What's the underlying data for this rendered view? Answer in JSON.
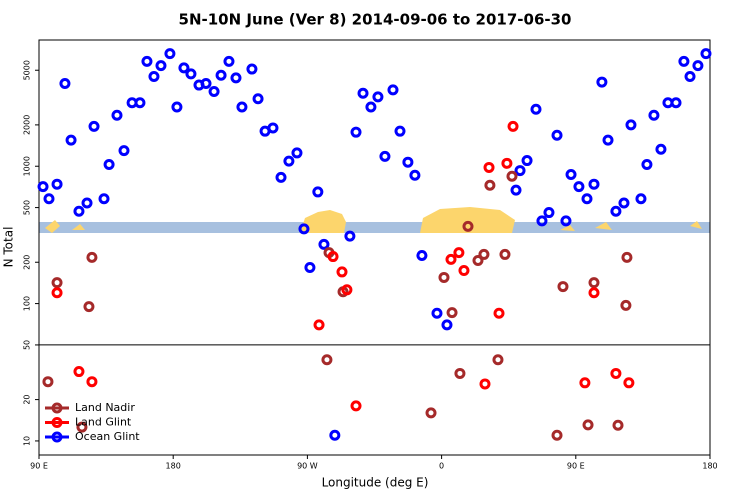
{
  "chart_data": {
    "type": "scatter",
    "title": "5N-10N June (Ver 8)   2014-09-06 to 2017-06-30",
    "x_label": "Longitude (deg E)",
    "y_label": "N Total",
    "log_y": true,
    "legend": "bottom-left",
    "reference_line": 50,
    "xlim": [
      90,
      540
    ],
    "xticks": [
      {
        "value": 90,
        "label": "90 E"
      },
      180,
      {
        "value": 270,
        "label": "90 W"
      },
      {
        "value": 360,
        "label": "0"
      },
      {
        "value": 450,
        "label": "90 E"
      },
      {
        "value": 540,
        "label": "180"
      }
    ],
    "ylim": [
      7.9,
      8300
    ],
    "yticks": [
      10,
      20,
      50,
      100,
      200,
      500,
      1000,
      2000,
      5000
    ],
    "series": [
      {
        "name": "Land Nadir",
        "color": "#a52a2a",
        "x": [
          96.0,
          102.1,
          118.8,
          125.5,
          123.5,
          283.1,
          284.5,
          293.9,
          352.9,
          361.6,
          367.0,
          372.3,
          377.7,
          384.4,
          388.4,
          392.4,
          397.8,
          402.5,
          407.2,
          437.4,
          441.4,
          458.2,
          462.2,
          478.3,
          484.3,
          483.6
        ],
        "values": [
          27,
          142,
          12.6,
          217,
          95,
          39,
          235,
          122,
          16,
          155,
          86,
          31,
          365,
          206,
          228,
          727,
          39,
          228,
          845,
          11,
          133,
          13.1,
          142,
          13,
          217,
          97
        ]
      },
      {
        "name": "Land Glint",
        "color": "#ff0000",
        "x": [
          102.1,
          116.8,
          125.5,
          277.8,
          287.2,
          293.2,
          296.5,
          302.6,
          366.3,
          371.6,
          375.0,
          391.8,
          398.5,
          389.1,
          403.8,
          407.9,
          456.1,
          462.2,
          476.9,
          485.6
        ],
        "values": [
          120,
          32,
          27,
          70,
          220,
          170,
          126,
          18,
          210,
          235,
          174,
          980,
          85,
          26,
          1050,
          1950,
          26.5,
          120,
          31,
          26.5
        ]
      },
      {
        "name": "Ocean Glint",
        "color": "#0000ff",
        "x": [
          92.7,
          96.7,
          102.1,
          107.4,
          111.5,
          116.8,
          122.2,
          126.9,
          133.6,
          137.0,
          142.3,
          147.0,
          152.4,
          157.7,
          162.4,
          167.1,
          171.8,
          177.8,
          182.5,
          187.2,
          191.9,
          197.3,
          202.0,
          207.4,
          212.1,
          217.4,
          222.1,
          226.1,
          232.8,
          236.9,
          241.6,
          246.9,
          252.3,
          257.6,
          263.0,
          267.7,
          271.7,
          277.0,
          281.1,
          288.4,
          298.5,
          302.6,
          307.3,
          312.6,
          317.3,
          322.0,
          327.4,
          332.1,
          337.4,
          342.1,
          346.8,
          356.9,
          363.6,
          409.9,
          412.6,
          417.3,
          423.3,
          427.3,
          432.0,
          437.4,
          443.4,
          446.8,
          452.1,
          457.5,
          462.2,
          467.5,
          471.6,
          476.9,
          482.3,
          487.0,
          493.7,
          497.7,
          502.4,
          507.1,
          511.8,
          517.2,
          522.5,
          526.6,
          531.9,
          537.3
        ],
        "values": [
          710,
          580,
          740,
          4000,
          1550,
          470,
          540,
          1950,
          580,
          1030,
          2350,
          1300,
          2900,
          2900,
          5800,
          4500,
          5400,
          6600,
          2700,
          5200,
          4700,
          3900,
          4000,
          3500,
          4600,
          5800,
          4400,
          2700,
          5100,
          3100,
          1800,
          1900,
          830,
          1090,
          1250,
          350,
          183,
          650,
          270,
          11,
          310,
          1770,
          3400,
          2700,
          3200,
          1180,
          3600,
          1800,
          1070,
          860,
          224,
          85,
          70,
          670,
          930,
          1100,
          2600,
          400,
          460,
          1680,
          400,
          870,
          710,
          580,
          740,
          4100,
          1550,
          470,
          540,
          2000,
          580,
          1030,
          2350,
          1330,
          2900,
          2900,
          5800,
          4500,
          5400,
          6600
        ]
      }
    ]
  }
}
